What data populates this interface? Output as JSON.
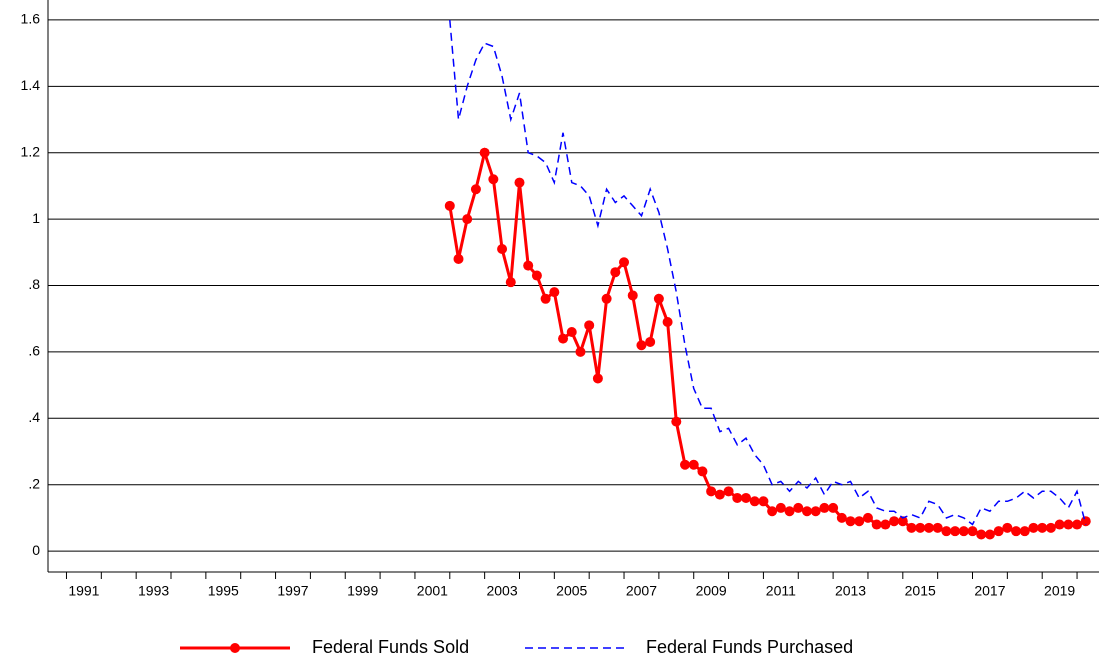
{
  "chart_data": {
    "type": "line",
    "x": [
      2002,
      2002.25,
      2002.5,
      2002.75,
      2003,
      2003.25,
      2003.5,
      2003.75,
      2004,
      2004.25,
      2004.5,
      2004.75,
      2005,
      2005.25,
      2005.5,
      2005.75,
      2006,
      2006.25,
      2006.5,
      2006.75,
      2007,
      2007.25,
      2007.5,
      2007.75,
      2008,
      2008.25,
      2008.5,
      2008.75,
      2009,
      2009.25,
      2009.5,
      2009.75,
      2010,
      2010.25,
      2010.5,
      2010.75,
      2011,
      2011.25,
      2011.5,
      2011.75,
      2012,
      2012.25,
      2012.5,
      2012.75,
      2013,
      2013.25,
      2013.5,
      2013.75,
      2014,
      2014.25,
      2014.5,
      2014.75,
      2015,
      2015.25,
      2015.5,
      2015.75,
      2016,
      2016.25,
      2016.5,
      2016.75,
      2017,
      2017.25,
      2017.5,
      2017.75,
      2018,
      2018.25,
      2018.5,
      2018.75,
      2019,
      2019.25,
      2019.5,
      2019.75,
      2020,
      2020.25
    ],
    "series": [
      {
        "name": "Federal Funds Sold",
        "color": "#ff0000",
        "style": "solid-marker",
        "values": [
          1.04,
          0.88,
          1.0,
          1.09,
          1.2,
          1.12,
          0.91,
          0.81,
          1.11,
          0.86,
          0.83,
          0.76,
          0.78,
          0.64,
          0.66,
          0.6,
          0.68,
          0.52,
          0.76,
          0.84,
          0.87,
          0.77,
          0.62,
          0.63,
          0.76,
          0.69,
          0.39,
          0.26,
          0.26,
          0.24,
          0.18,
          0.17,
          0.18,
          0.16,
          0.16,
          0.15,
          0.15,
          0.12,
          0.13,
          0.12,
          0.13,
          0.12,
          0.12,
          0.13,
          0.13,
          0.1,
          0.09,
          0.09,
          0.1,
          0.08,
          0.08,
          0.09,
          0.09,
          0.07,
          0.07,
          0.07,
          0.07,
          0.06,
          0.06,
          0.06,
          0.06,
          0.05,
          0.05,
          0.06,
          0.07,
          0.06,
          0.06,
          0.07,
          0.07,
          0.07,
          0.08,
          0.08,
          0.08,
          0.09
        ]
      },
      {
        "name": "Federal Funds Purchased",
        "color": "#0000ff",
        "style": "dashed",
        "values": [
          1.6,
          1.3,
          1.4,
          1.48,
          1.53,
          1.52,
          1.43,
          1.3,
          1.38,
          1.2,
          1.19,
          1.17,
          1.11,
          1.26,
          1.11,
          1.1,
          1.07,
          0.98,
          1.09,
          1.05,
          1.07,
          1.04,
          1.01,
          1.09,
          1.02,
          0.91,
          0.78,
          0.62,
          0.49,
          0.43,
          0.43,
          0.36,
          0.37,
          0.32,
          0.34,
          0.29,
          0.26,
          0.2,
          0.21,
          0.18,
          0.21,
          0.19,
          0.22,
          0.17,
          0.21,
          0.2,
          0.21,
          0.16,
          0.18,
          0.13,
          0.12,
          0.12,
          0.1,
          0.11,
          0.1,
          0.15,
          0.14,
          0.1,
          0.11,
          0.1,
          0.08,
          0.13,
          0.12,
          0.15,
          0.15,
          0.16,
          0.18,
          0.16,
          0.18,
          0.18,
          0.16,
          0.13,
          0.18,
          0.08
        ]
      }
    ],
    "xlim": [
      1990.47,
      2020.63
    ],
    "xticks": [
      {
        "value": 1991.5,
        "label": "1991"
      },
      {
        "value": 1993.5,
        "label": "1993"
      },
      {
        "value": 1995.5,
        "label": "1995"
      },
      {
        "value": 1997.5,
        "label": "1997"
      },
      {
        "value": 1999.5,
        "label": "1999"
      },
      {
        "value": 2001.5,
        "label": "2001"
      },
      {
        "value": 2003.5,
        "label": "2003"
      },
      {
        "value": 2005.5,
        "label": "2005"
      },
      {
        "value": 2007.5,
        "label": "2007"
      },
      {
        "value": 2009.5,
        "label": "2009"
      },
      {
        "value": 2011.5,
        "label": "2011"
      },
      {
        "value": 2013.5,
        "label": "2013"
      },
      {
        "value": 2015.5,
        "label": "2015"
      },
      {
        "value": 2017.5,
        "label": "2017"
      },
      {
        "value": 2019.5,
        "label": "2019"
      }
    ],
    "ylim": [
      -0.063,
      1.66
    ],
    "yticks": [
      0,
      {
        "value": 0.2,
        "label": ".2"
      },
      {
        "value": 0.4,
        "label": ".4"
      },
      {
        "value": 0.6,
        "label": ".6"
      },
      {
        "value": 0.8,
        "label": ".8"
      },
      1,
      1.2,
      1.4,
      1.6
    ],
    "grid": true,
    "legend": "bottom"
  }
}
